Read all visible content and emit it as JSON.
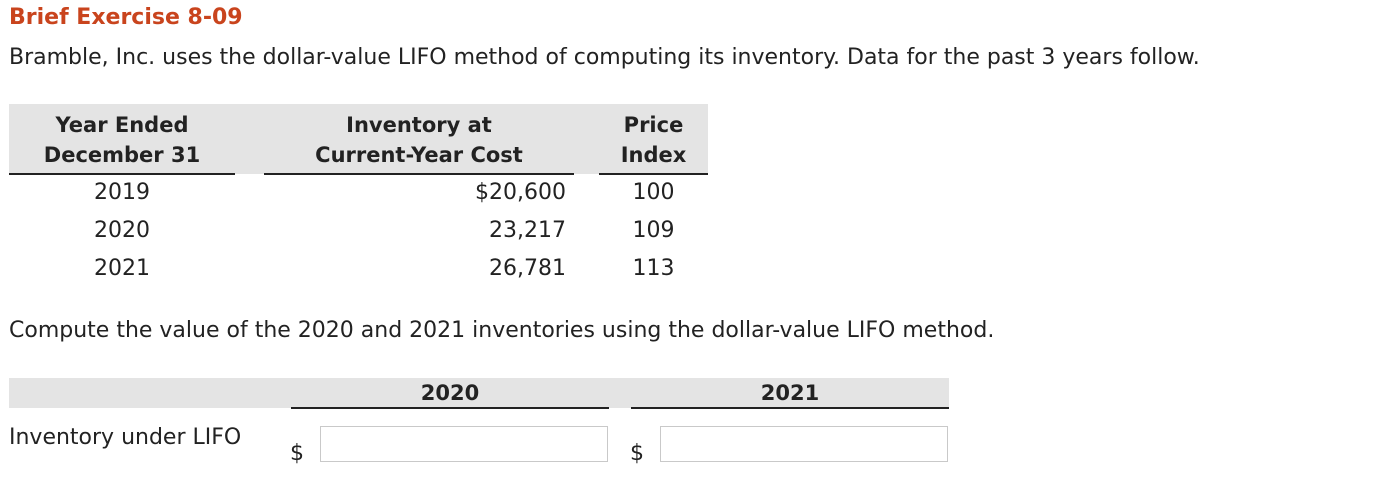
{
  "title": "Brief Exercise 8-09",
  "intro": "Bramble, Inc. uses the dollar-value LIFO method of computing its inventory. Data for the past 3 years follow.",
  "data_table": {
    "headers": {
      "year": [
        "Year Ended",
        "December 31"
      ],
      "inventory": [
        "Inventory at",
        "Current-Year Cost"
      ],
      "price": [
        "Price",
        "Index"
      ]
    },
    "rows": [
      {
        "year": "2019",
        "inventory": "$20,600",
        "price": "100"
      },
      {
        "year": "2020",
        "inventory": "23,217",
        "price": "109"
      },
      {
        "year": "2021",
        "inventory": "26,781",
        "price": "113"
      }
    ]
  },
  "question": "Compute the value of the 2020 and 2021 inventories using the dollar-value LIFO method.",
  "answer_table": {
    "col_2020": "2020",
    "col_2021": "2021",
    "row_label": "Inventory under LIFO",
    "currency": "$",
    "value_2020": "",
    "value_2021": ""
  }
}
